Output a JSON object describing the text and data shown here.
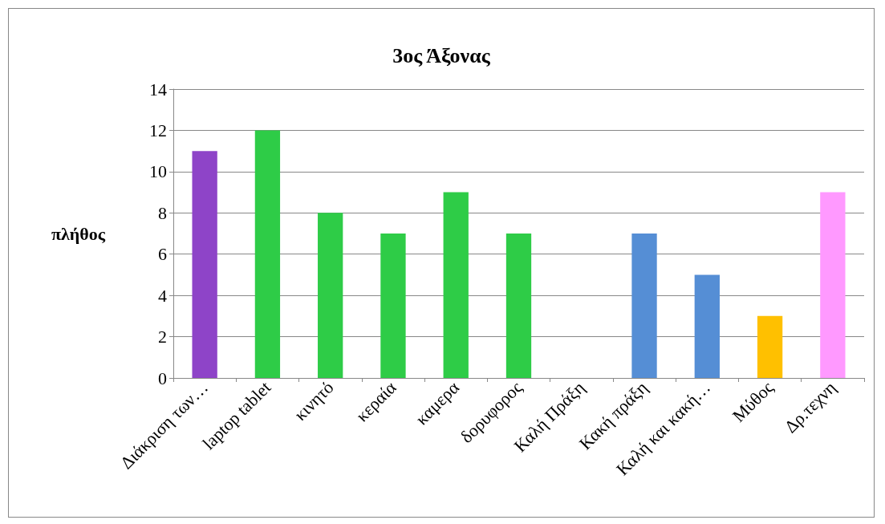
{
  "chart_data": {
    "type": "bar",
    "title": "3ος Άξονας",
    "ylabel": "πλήθος",
    "categories": [
      "Διάκριση των…",
      "laptop tablet",
      "κινητό",
      "κεραία",
      "καμερα",
      "δορυφορος",
      "Καλή Πράξη",
      "Κακή πράξη",
      "Καλή και κακή…",
      "Μύθος",
      "Δρ.τεχνη"
    ],
    "values": [
      11,
      12,
      8,
      7,
      9,
      7,
      0,
      7,
      5,
      3,
      9
    ],
    "colors": [
      "#8e44c8",
      "#2ecc47",
      "#2ecc47",
      "#2ecc47",
      "#2ecc47",
      "#2ecc47",
      "#2ecc47",
      "#558ed5",
      "#558ed5",
      "#ffc000",
      "#ff99ff"
    ],
    "ylim": [
      0,
      14
    ],
    "yticks": [
      0,
      2,
      4,
      6,
      8,
      10,
      12,
      14
    ],
    "grid": "y"
  }
}
